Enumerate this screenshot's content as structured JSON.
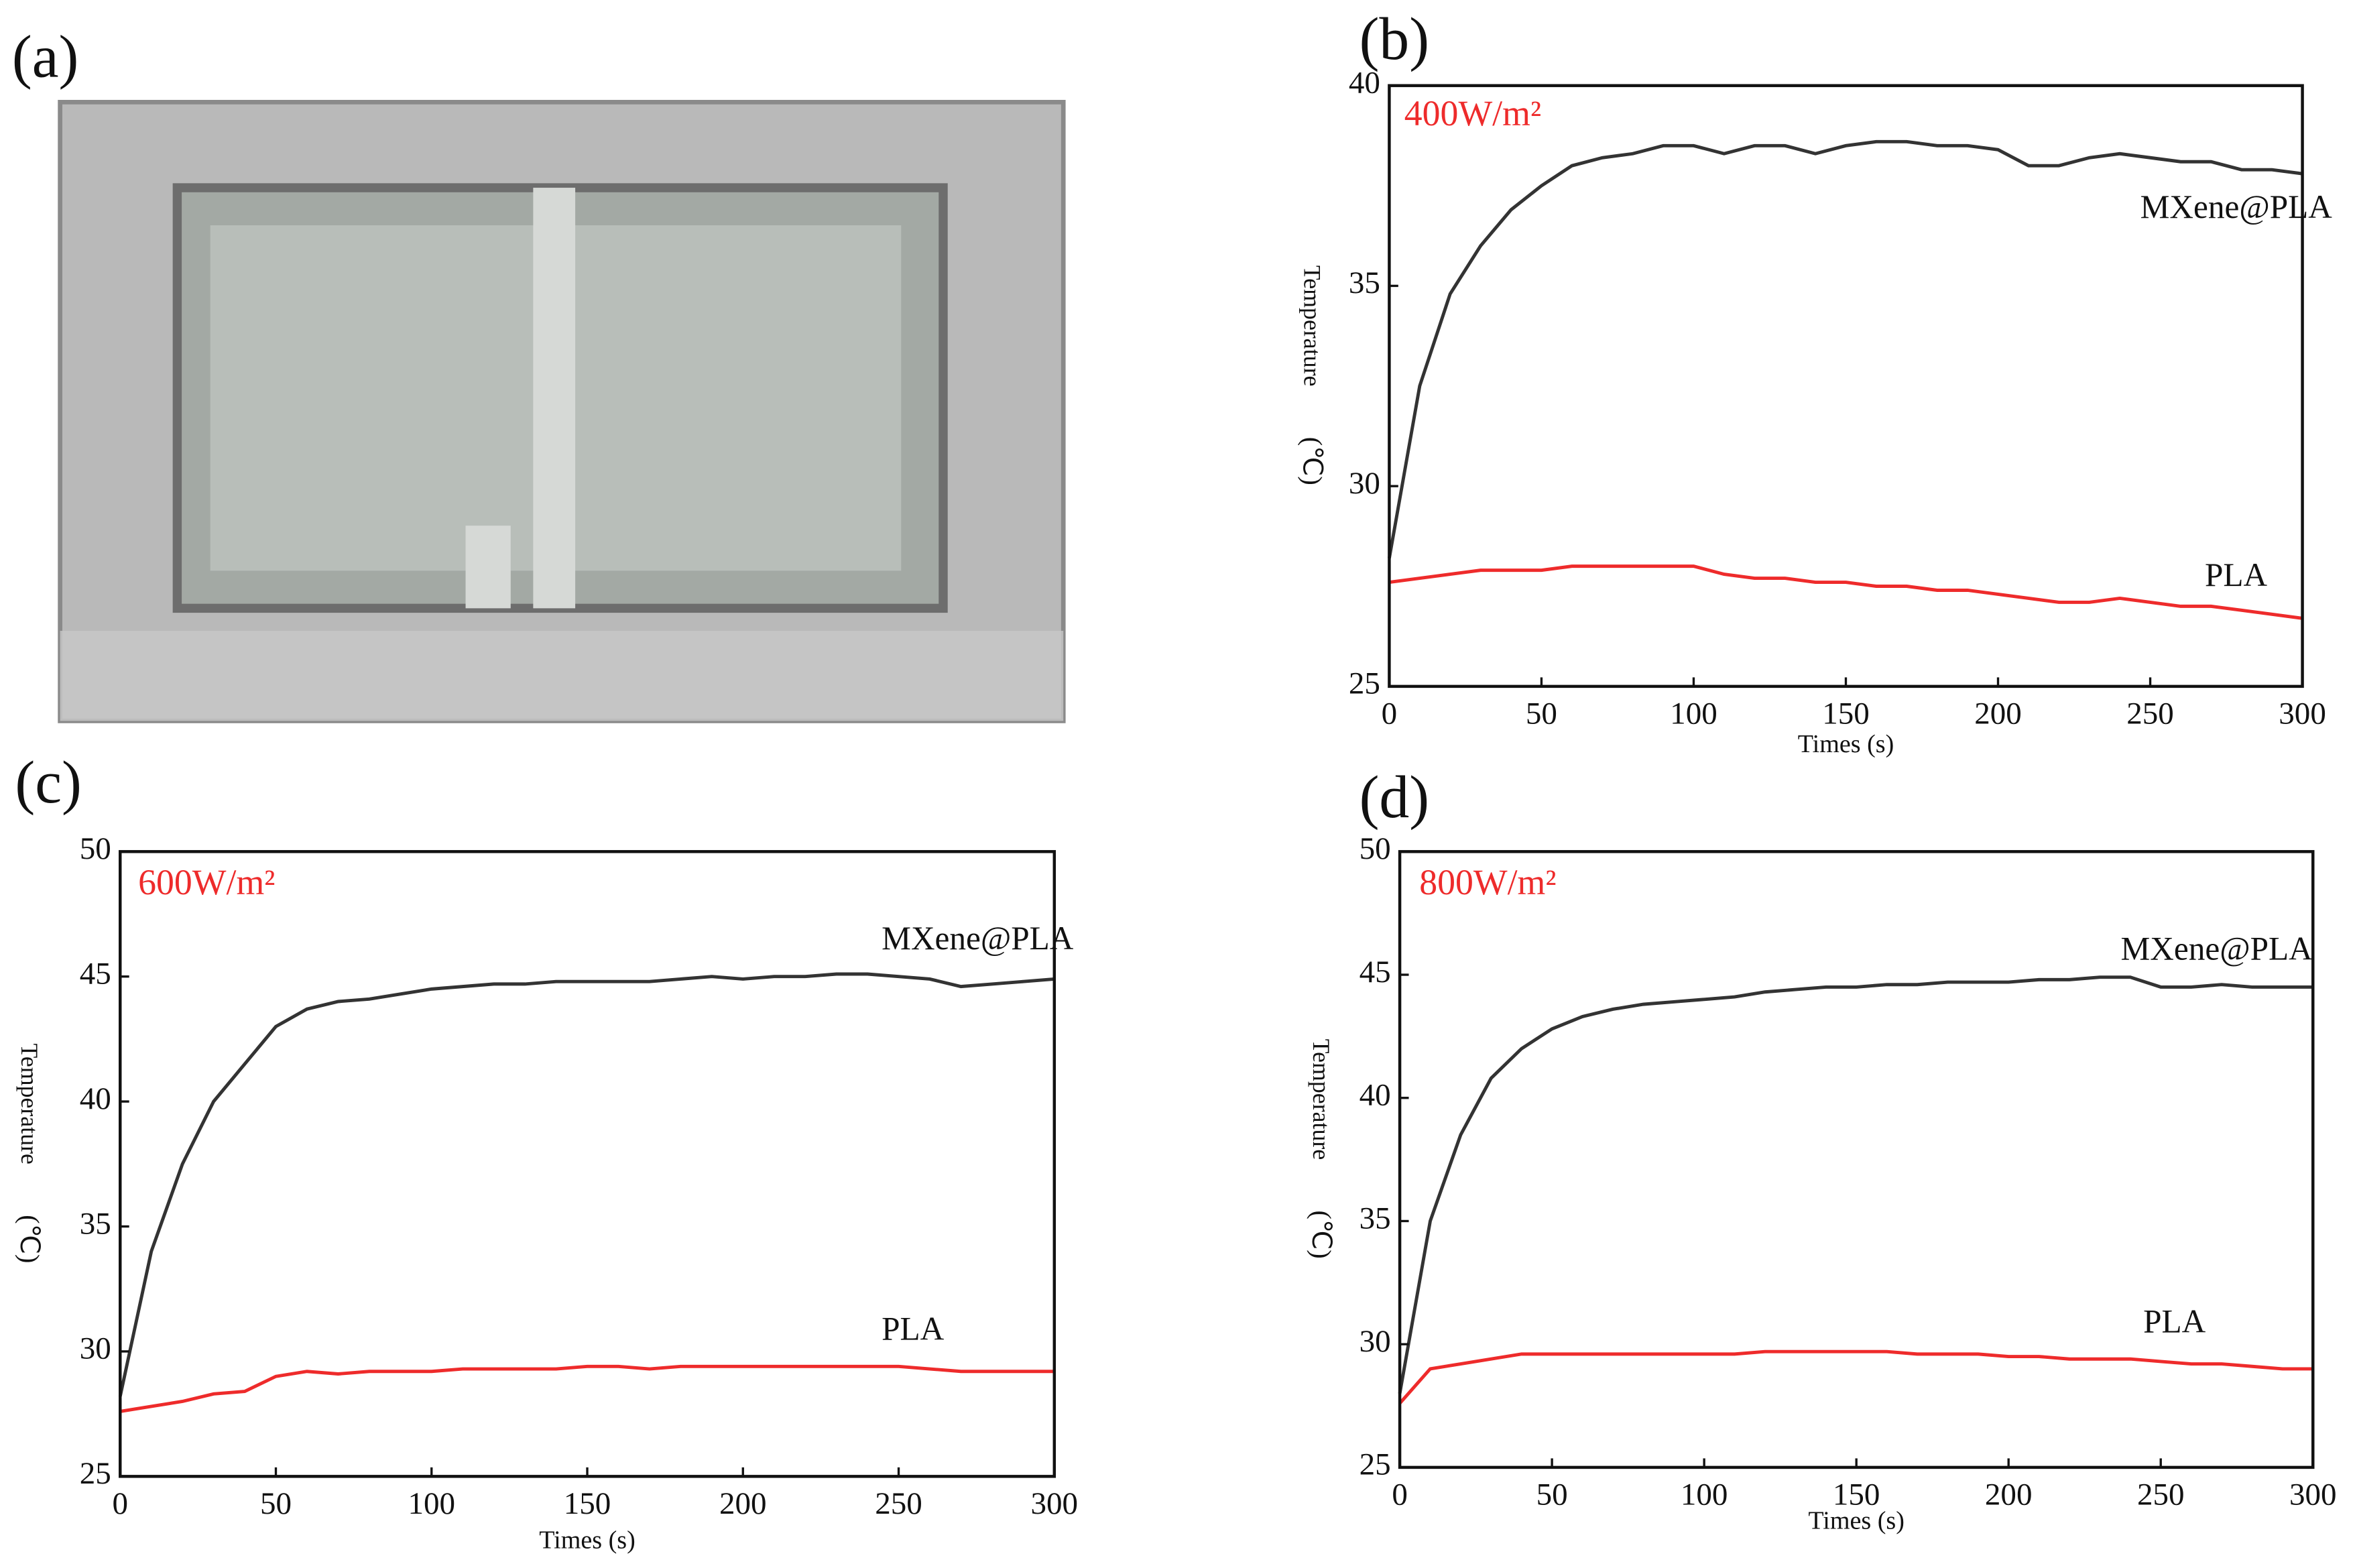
{
  "photo": {
    "label": "(a)"
  },
  "chart_data": [
    {
      "type": "line",
      "panel": "(b)",
      "annotation": "400W/m²",
      "xlabel": "Times (s)",
      "ylabel": [
        "Temperature",
        "(℃)"
      ],
      "x": [
        0,
        10,
        20,
        30,
        40,
        50,
        60,
        70,
        80,
        90,
        100,
        110,
        120,
        130,
        140,
        150,
        160,
        170,
        180,
        190,
        200,
        210,
        220,
        230,
        240,
        250,
        260,
        270,
        280,
        290,
        300
      ],
      "series": [
        {
          "name": "MXene@PLA",
          "color": "#333333",
          "values": [
            28.2,
            32.5,
            34.8,
            36.0,
            36.9,
            37.5,
            38.0,
            38.2,
            38.3,
            38.5,
            38.5,
            38.3,
            38.5,
            38.5,
            38.3,
            38.5,
            38.6,
            38.6,
            38.5,
            38.5,
            38.4,
            38.0,
            38.0,
            38.2,
            38.3,
            38.2,
            38.1,
            38.1,
            37.9,
            37.9,
            37.8
          ]
        },
        {
          "name": "PLA",
          "color": "#ee2b2b",
          "values": [
            27.6,
            27.7,
            27.8,
            27.9,
            27.9,
            27.9,
            28.0,
            28.0,
            28.0,
            28.0,
            28.0,
            27.8,
            27.7,
            27.7,
            27.6,
            27.6,
            27.5,
            27.5,
            27.4,
            27.4,
            27.3,
            27.2,
            27.1,
            27.1,
            27.2,
            27.1,
            27.0,
            27.0,
            26.9,
            26.8,
            26.7
          ]
        }
      ],
      "xlim": [
        0,
        300
      ],
      "xticks": [
        0,
        50,
        100,
        150,
        200,
        250,
        300
      ],
      "ylim": [
        25,
        40
      ],
      "yticks": [
        25,
        30,
        35,
        40
      ]
    },
    {
      "type": "line",
      "panel": "(c)",
      "annotation": "600W/m²",
      "xlabel": "Times (s)",
      "ylabel": [
        "Temperature",
        "(℃)"
      ],
      "x": [
        0,
        10,
        20,
        30,
        40,
        50,
        60,
        70,
        80,
        90,
        100,
        110,
        120,
        130,
        140,
        150,
        160,
        170,
        180,
        190,
        200,
        210,
        220,
        230,
        240,
        250,
        260,
        270,
        280,
        290,
        300
      ],
      "series": [
        {
          "name": "MXene@PLA",
          "color": "#333333",
          "values": [
            28.2,
            34.0,
            37.5,
            40.0,
            41.5,
            43.0,
            43.7,
            44.0,
            44.1,
            44.3,
            44.5,
            44.6,
            44.7,
            44.7,
            44.8,
            44.8,
            44.8,
            44.8,
            44.9,
            45.0,
            44.9,
            45.0,
            45.0,
            45.1,
            45.1,
            45.0,
            44.9,
            44.6,
            44.7,
            44.8,
            44.9
          ]
        },
        {
          "name": "PLA",
          "color": "#ee2b2b",
          "values": [
            27.6,
            27.8,
            28.0,
            28.3,
            28.4,
            29.0,
            29.2,
            29.1,
            29.2,
            29.2,
            29.2,
            29.3,
            29.3,
            29.3,
            29.3,
            29.4,
            29.4,
            29.3,
            29.4,
            29.4,
            29.4,
            29.4,
            29.4,
            29.4,
            29.4,
            29.4,
            29.3,
            29.2,
            29.2,
            29.2,
            29.2
          ]
        }
      ],
      "xlim": [
        0,
        300
      ],
      "xticks": [
        0,
        50,
        100,
        150,
        200,
        250,
        300
      ],
      "ylim": [
        25,
        50
      ],
      "yticks": [
        25,
        30,
        35,
        40,
        45,
        50
      ]
    },
    {
      "type": "line",
      "panel": "(d)",
      "annotation": "800W/m²",
      "xlabel": "Times (s)",
      "ylabel": [
        "Temperature",
        "(℃)"
      ],
      "x": [
        0,
        10,
        20,
        30,
        40,
        50,
        60,
        70,
        80,
        90,
        100,
        110,
        120,
        130,
        140,
        150,
        160,
        170,
        180,
        190,
        200,
        210,
        220,
        230,
        240,
        250,
        260,
        270,
        280,
        290,
        300
      ],
      "series": [
        {
          "name": "MXene@PLA",
          "color": "#333333",
          "values": [
            28.0,
            35.0,
            38.5,
            40.8,
            42.0,
            42.8,
            43.3,
            43.6,
            43.8,
            43.9,
            44.0,
            44.1,
            44.3,
            44.4,
            44.5,
            44.5,
            44.6,
            44.6,
            44.7,
            44.7,
            44.7,
            44.8,
            44.8,
            44.9,
            44.9,
            44.5,
            44.5,
            44.6,
            44.5,
            44.5,
            44.5
          ]
        },
        {
          "name": "PLA",
          "color": "#ee2b2b",
          "values": [
            27.6,
            29.0,
            29.2,
            29.4,
            29.6,
            29.6,
            29.6,
            29.6,
            29.6,
            29.6,
            29.6,
            29.6,
            29.7,
            29.7,
            29.7,
            29.7,
            29.7,
            29.6,
            29.6,
            29.6,
            29.5,
            29.5,
            29.4,
            29.4,
            29.4,
            29.3,
            29.2,
            29.2,
            29.1,
            29.0,
            29.0
          ]
        }
      ],
      "xlim": [
        0,
        300
      ],
      "xticks": [
        0,
        50,
        100,
        150,
        200,
        250,
        300
      ],
      "ylim": [
        25,
        50
      ],
      "yticks": [
        25,
        30,
        35,
        40,
        45,
        50
      ]
    }
  ]
}
